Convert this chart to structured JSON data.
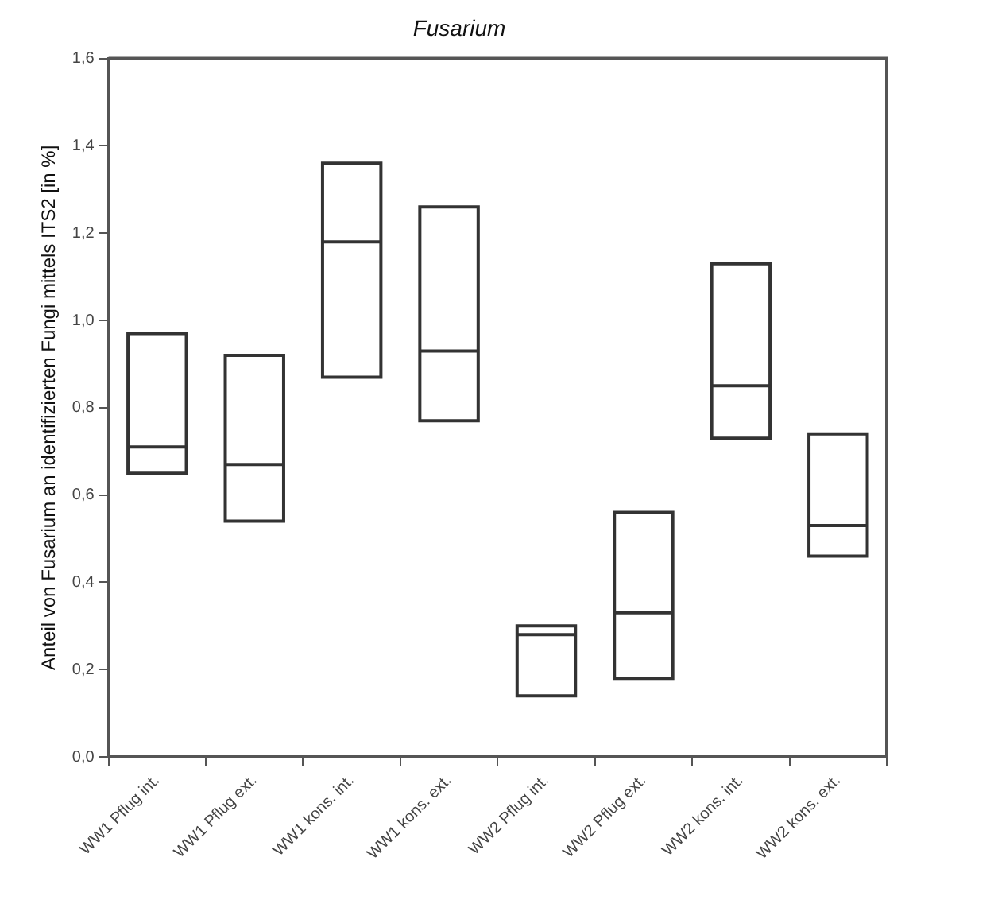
{
  "chart_data": {
    "type": "box",
    "title": "Fusarium",
    "ylabel": "Anteil von Fusarium an identifizierten Fungi mittels ITS2 [in %]",
    "categories": [
      "WW1 Pflug int.",
      "WW1 Pflug ext.",
      "WW1 kons. int.",
      "WW1 kons. ext.",
      "WW2 Pflug int.",
      "WW2 Pflug ext.",
      "WW2 kons. int.",
      "WW2 kons. ext."
    ],
    "boxes": [
      {
        "low": 0.65,
        "q1": 0.65,
        "median": 0.71,
        "q3": 0.97,
        "high": 0.97
      },
      {
        "low": 0.54,
        "q1": 0.54,
        "median": 0.67,
        "q3": 0.92,
        "high": 0.92
      },
      {
        "low": 0.87,
        "q1": 0.87,
        "median": 1.18,
        "q3": 1.36,
        "high": 1.36
      },
      {
        "low": 0.77,
        "q1": 0.77,
        "median": 0.93,
        "q3": 1.26,
        "high": 1.26
      },
      {
        "low": 0.14,
        "q1": 0.14,
        "median": 0.28,
        "q3": 0.3,
        "high": 0.3
      },
      {
        "low": 0.18,
        "q1": 0.18,
        "median": 0.33,
        "q3": 0.56,
        "high": 0.56
      },
      {
        "low": 0.73,
        "q1": 0.73,
        "median": 0.85,
        "q3": 1.13,
        "high": 1.13
      },
      {
        "low": 0.46,
        "q1": 0.46,
        "median": 0.53,
        "q3": 0.74,
        "high": 0.74
      }
    ],
    "color": "#333333",
    "ylim": [
      0,
      1.6
    ],
    "yticks": [
      {
        "value": 0,
        "label": "0,0"
      },
      {
        "value": 0.2,
        "label": "0,2"
      },
      {
        "value": 0.4,
        "label": "0,4"
      },
      {
        "value": 0.6,
        "label": "0,6"
      },
      {
        "value": 0.8,
        "label": "0,8"
      },
      {
        "value": 1.0,
        "label": "1,0"
      },
      {
        "value": 1.2,
        "label": "1,2"
      },
      {
        "value": 1.4,
        "label": "1,4"
      },
      {
        "value": 1.6,
        "label": "1,6"
      }
    ],
    "grid": false,
    "legend": false
  }
}
